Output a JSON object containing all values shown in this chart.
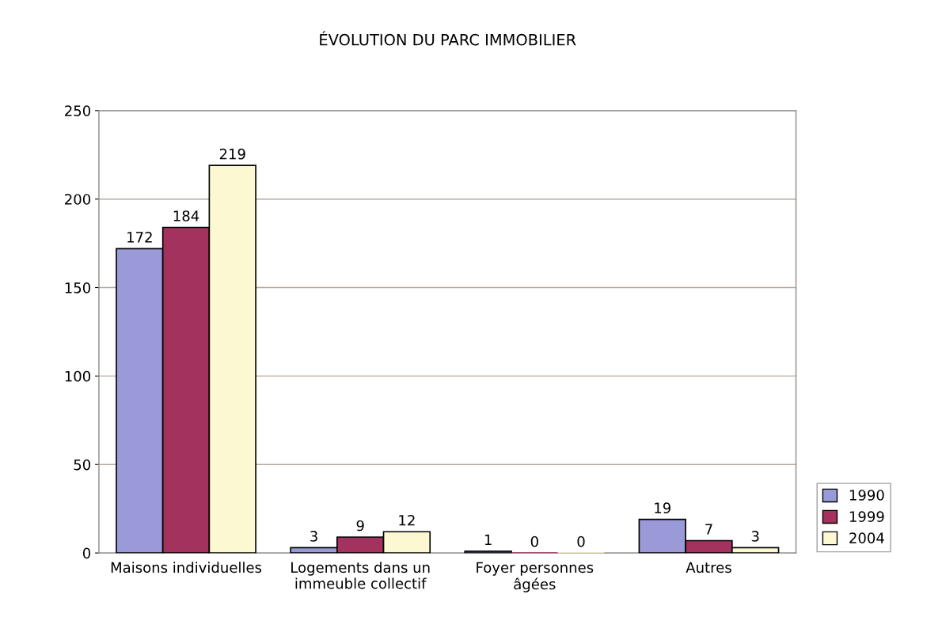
{
  "chart_data": {
    "type": "bar",
    "title": "ÉVOLUTION DU PARC IMMOBILIER",
    "categories": [
      "Maisons individuelles",
      "Logements dans un\nimmeuble collectif",
      "Foyer personnes\nâgées",
      "Autres"
    ],
    "series": [
      {
        "name": "1990",
        "color": "#9a9ad8",
        "values": [
          172,
          3,
          1,
          19
        ]
      },
      {
        "name": "1999",
        "color": "#a3325f",
        "values": [
          184,
          9,
          0,
          7
        ]
      },
      {
        "name": "2004",
        "color": "#fcf9d2",
        "values": [
          219,
          12,
          0,
          3
        ]
      }
    ],
    "ylim": [
      0,
      250
    ],
    "yticks": [
      0,
      50,
      100,
      150,
      200,
      250
    ],
    "grid": "y",
    "legend": "right",
    "data_labels": true
  }
}
